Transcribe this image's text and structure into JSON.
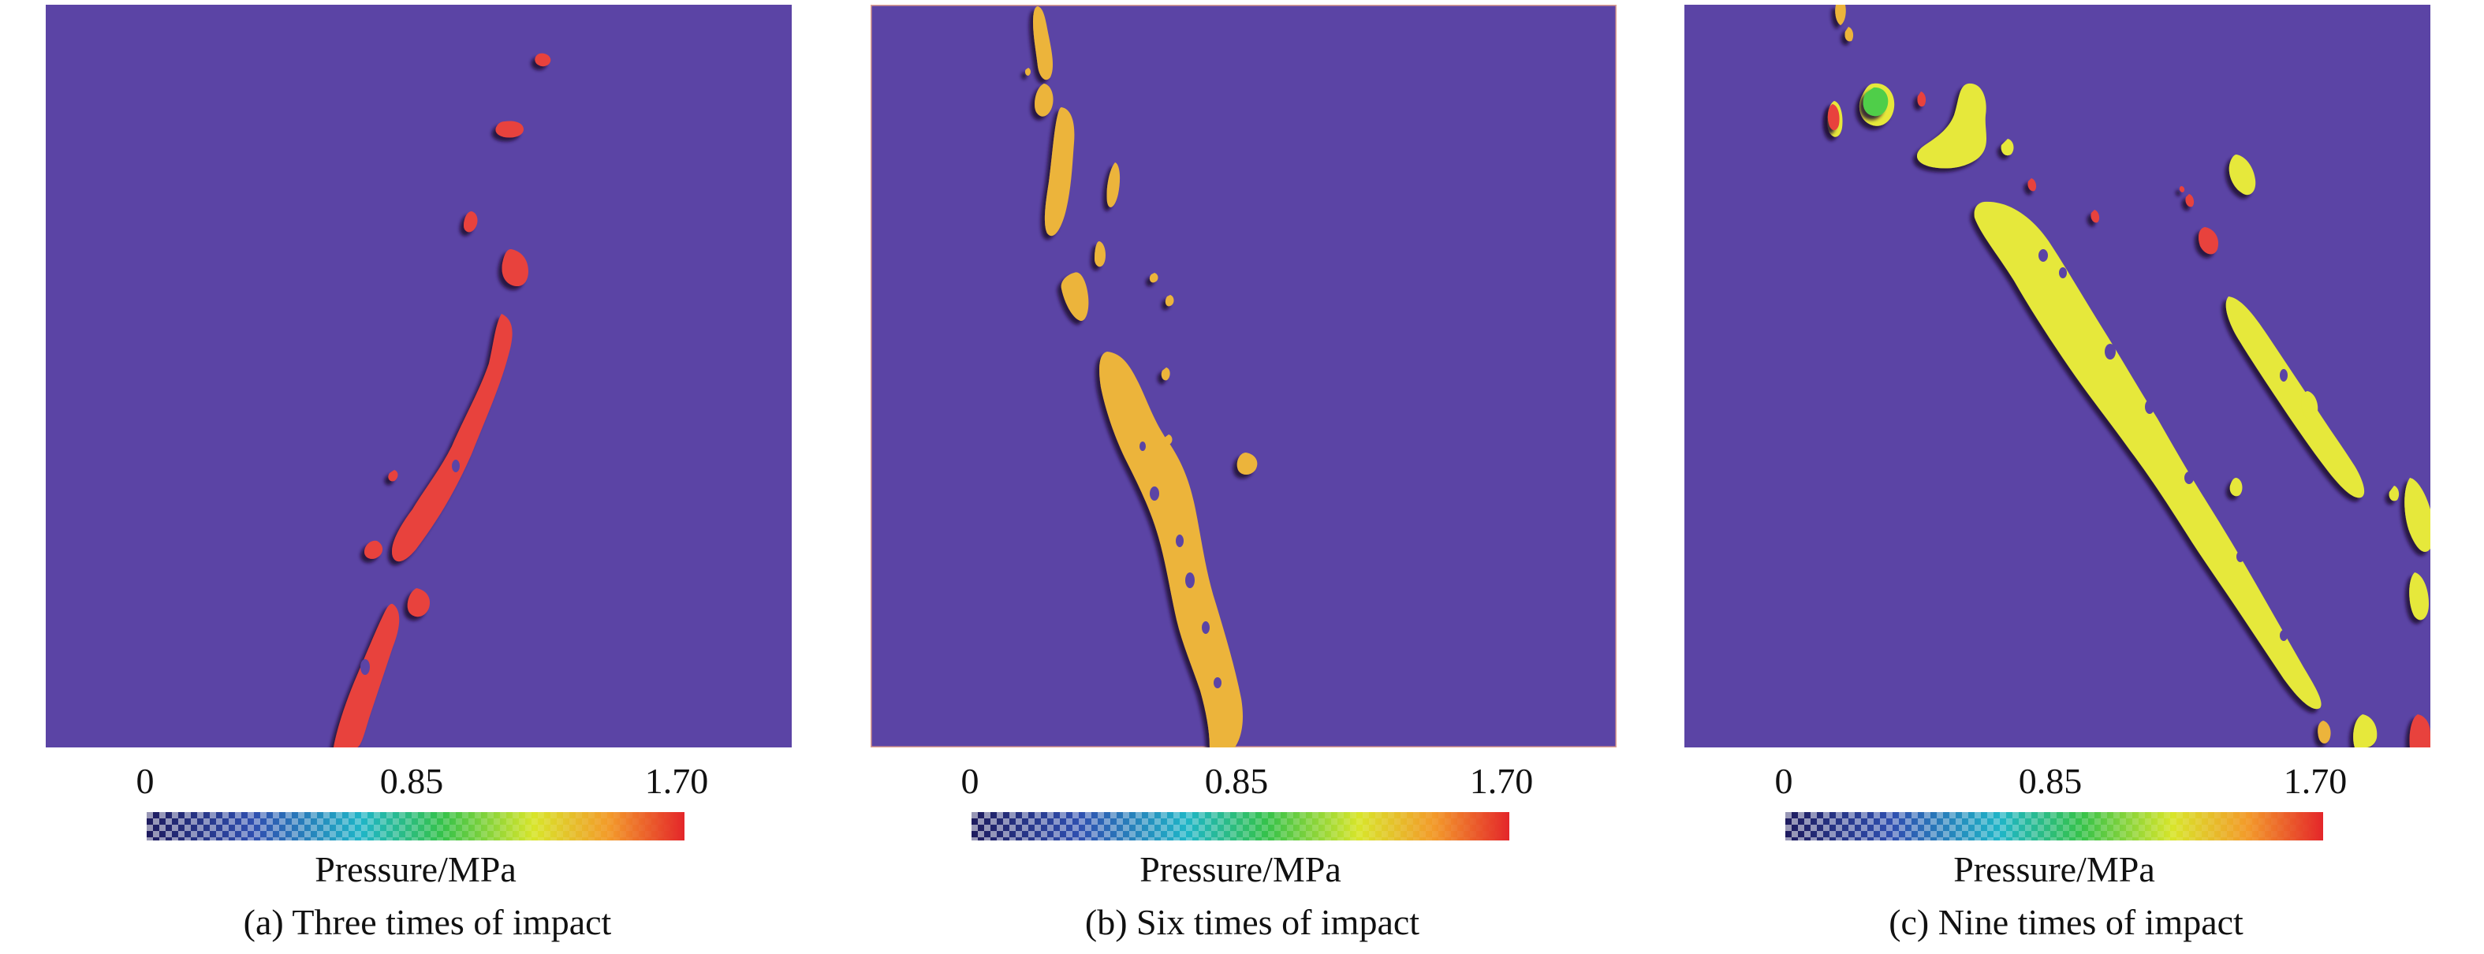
{
  "colorbar": {
    "ticks": [
      "0",
      "0.85",
      "1.70"
    ],
    "label": "Pressure/MPa",
    "stops": [
      "#1e1b5e",
      "#2f4fb0",
      "#1fb5c7",
      "#35c24a",
      "#d8e52a",
      "#f39a2a",
      "#e4262a"
    ]
  },
  "background_color": "#5b44a5",
  "panels": [
    {
      "caption": "(a) Three times of impact",
      "fill_color": "#e8433c",
      "crack_pressure_fraction": 0.95
    },
    {
      "caption": "(b) Six times of impact",
      "fill_color": "#ecb43a",
      "crack_pressure_fraction": 0.75
    },
    {
      "caption": "(c) Nine times of impact",
      "fill_color": "#e6e83a",
      "crack_pressure_fraction": 0.6
    }
  ]
}
